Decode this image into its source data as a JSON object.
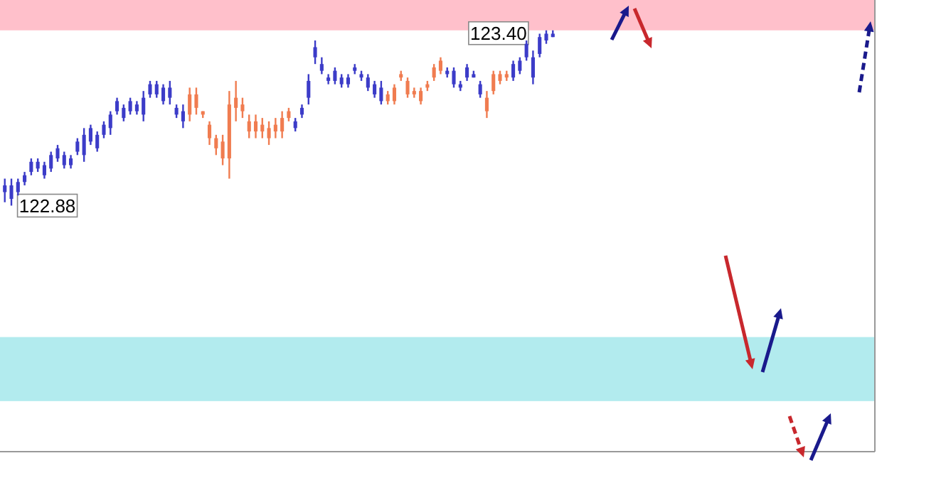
{
  "chart_data": {
    "type": "candlestick",
    "ylim": [
      122.15,
      123.49
    ],
    "categories": [
      null,
      null,
      null,
      null,
      null,
      null,
      null,
      null,
      null,
      null,
      null,
      null,
      null,
      null,
      null,
      null,
      null,
      null,
      null,
      null,
      null,
      null,
      null,
      null,
      null,
      null,
      null,
      null,
      null,
      null,
      null,
      null,
      null,
      null,
      null,
      null,
      null,
      null,
      null,
      null,
      null,
      null,
      null,
      null,
      null,
      null,
      null,
      null,
      null,
      null,
      null,
      null,
      null,
      null,
      null,
      null,
      null,
      null,
      null,
      null,
      null,
      null,
      null,
      null,
      null,
      null,
      null,
      null,
      null,
      null,
      null,
      null,
      null,
      null,
      null,
      null,
      null,
      null,
      null,
      null,
      null,
      null,
      null,
      null
    ],
    "ohlc": [
      [
        122.92,
        122.96,
        122.89,
        122.94
      ],
      [
        122.9,
        122.96,
        122.88,
        122.94
      ],
      [
        122.92,
        122.96,
        122.91,
        122.95
      ],
      [
        122.95,
        122.98,
        122.94,
        122.97
      ],
      [
        122.98,
        123.02,
        122.97,
        123.01
      ],
      [
        122.99,
        123.02,
        122.98,
        123.01
      ],
      [
        122.97,
        123.01,
        122.96,
        123.0
      ],
      [
        122.99,
        123.04,
        122.98,
        123.03
      ],
      [
        123.02,
        123.06,
        123.01,
        123.05
      ],
      [
        123.0,
        123.04,
        122.99,
        123.03
      ],
      [
        123.0,
        123.03,
        122.99,
        123.02
      ],
      [
        123.04,
        123.08,
        123.03,
        123.07
      ],
      [
        123.03,
        123.11,
        123.01,
        123.09
      ],
      [
        123.07,
        123.12,
        123.06,
        123.11
      ],
      [
        123.05,
        123.1,
        123.04,
        123.09
      ],
      [
        123.09,
        123.13,
        123.08,
        123.12
      ],
      [
        123.11,
        123.16,
        123.09,
        123.15
      ],
      [
        123.16,
        123.2,
        123.15,
        123.19
      ],
      [
        123.14,
        123.18,
        123.13,
        123.17
      ],
      [
        123.16,
        123.2,
        123.15,
        123.19
      ],
      [
        123.16,
        123.19,
        123.15,
        123.18
      ],
      [
        123.15,
        123.22,
        123.13,
        123.2
      ],
      [
        123.21,
        123.25,
        123.2,
        123.24
      ],
      [
        123.21,
        123.25,
        123.2,
        123.24
      ],
      [
        123.19,
        123.24,
        123.18,
        123.23
      ],
      [
        123.2,
        123.25,
        123.18,
        123.23
      ],
      [
        123.15,
        123.18,
        123.14,
        123.17
      ],
      [
        123.13,
        123.18,
        123.11,
        123.16
      ],
      [
        123.21,
        123.23,
        123.13,
        123.15
      ],
      [
        123.21,
        123.23,
        123.15,
        123.17
      ],
      [
        123.16,
        123.16,
        123.14,
        123.15
      ],
      [
        123.12,
        123.13,
        123.06,
        123.08
      ],
      [
        123.08,
        123.09,
        123.03,
        123.05
      ],
      [
        123.07,
        123.09,
        123.0,
        123.02
      ],
      [
        123.18,
        123.22,
        122.96,
        123.02
      ],
      [
        123.2,
        123.25,
        123.13,
        123.17
      ],
      [
        123.18,
        123.2,
        123.14,
        123.16
      ],
      [
        123.13,
        123.15,
        123.08,
        123.1
      ],
      [
        123.13,
        123.15,
        123.08,
        123.1
      ],
      [
        123.12,
        123.14,
        123.08,
        123.1
      ],
      [
        123.11,
        123.13,
        123.06,
        123.08
      ],
      [
        123.12,
        123.14,
        123.08,
        123.1
      ],
      [
        123.14,
        123.16,
        123.08,
        123.1
      ],
      [
        123.16,
        123.17,
        123.13,
        123.14
      ],
      [
        123.11,
        123.14,
        123.1,
        123.13
      ],
      [
        123.15,
        123.18,
        123.14,
        123.17
      ],
      [
        123.2,
        123.27,
        123.18,
        123.25
      ],
      [
        123.32,
        123.37,
        123.3,
        123.35
      ],
      [
        123.28,
        123.32,
        123.27,
        123.3
      ],
      [
        123.25,
        123.27,
        123.24,
        123.26
      ],
      [
        123.25,
        123.29,
        123.24,
        123.28
      ],
      [
        123.24,
        123.27,
        123.23,
        123.26
      ],
      [
        123.24,
        123.27,
        123.23,
        123.26
      ],
      [
        123.28,
        123.3,
        123.27,
        123.29
      ],
      [
        123.26,
        123.28,
        123.25,
        123.27
      ],
      [
        123.23,
        123.27,
        123.22,
        123.26
      ],
      [
        123.21,
        123.25,
        123.2,
        123.24
      ],
      [
        123.19,
        123.25,
        123.18,
        123.23
      ],
      [
        123.21,
        123.22,
        123.18,
        123.19
      ],
      [
        123.23,
        123.24,
        123.18,
        123.19
      ],
      [
        123.27,
        123.28,
        123.25,
        123.26
      ],
      [
        123.25,
        123.26,
        123.2,
        123.21
      ],
      [
        123.22,
        123.23,
        123.2,
        123.21
      ],
      [
        123.22,
        123.23,
        123.18,
        123.19
      ],
      [
        123.24,
        123.25,
        123.22,
        123.23
      ],
      [
        123.29,
        123.3,
        123.25,
        123.26
      ],
      [
        123.31,
        123.32,
        123.27,
        123.28
      ],
      [
        123.27,
        123.29,
        123.26,
        123.28
      ],
      [
        123.24,
        123.29,
        123.23,
        123.28
      ],
      [
        123.23,
        123.25,
        123.22,
        123.24
      ],
      [
        123.26,
        123.3,
        123.25,
        123.29
      ],
      [
        123.26,
        123.28,
        123.26,
        123.27
      ],
      [
        123.21,
        123.25,
        123.2,
        123.24
      ],
      [
        123.2,
        123.22,
        123.14,
        123.16
      ],
      [
        123.27,
        123.28,
        123.21,
        123.22
      ],
      [
        123.27,
        123.28,
        123.24,
        123.25
      ],
      [
        123.27,
        123.28,
        123.25,
        123.26
      ],
      [
        123.26,
        123.31,
        123.25,
        123.3
      ],
      [
        123.28,
        123.32,
        123.27,
        123.31
      ],
      [
        123.32,
        123.37,
        123.31,
        123.36
      ],
      [
        123.26,
        123.34,
        123.24,
        123.32
      ],
      [
        123.33,
        123.39,
        123.32,
        123.38
      ],
      [
        123.37,
        123.4,
        123.36,
        123.39
      ],
      [
        123.38,
        123.4,
        123.38,
        123.39
      ]
    ],
    "colors": [
      "#3c3cc8",
      "#3c3cc8",
      "#3c3cc8",
      "#3c3cc8",
      "#3c3cc8",
      "#3c3cc8",
      "#3c3cc8",
      "#3c3cc8",
      "#3c3cc8",
      "#3c3cc8",
      "#3c3cc8",
      "#3c3cc8",
      "#3c3cc8",
      "#3c3cc8",
      "#3c3cc8",
      "#3c3cc8",
      "#3c3cc8",
      "#3c3cc8",
      "#3c3cc8",
      "#3c3cc8",
      "#3c3cc8",
      "#3c3cc8",
      "#3c3cc8",
      "#3c3cc8",
      "#3c3cc8",
      "#3c3cc8",
      "#3c3cc8",
      "#3c3cc8",
      "#f07c50",
      "#f07c50",
      "#f07c50",
      "#f07c50",
      "#f07c50",
      "#f07c50",
      "#f07c50",
      "#f07c50",
      "#f07c50",
      "#f07c50",
      "#f07c50",
      "#f07c50",
      "#f07c50",
      "#f07c50",
      "#f07c50",
      "#f07c50",
      "#3c3cc8",
      "#3c3cc8",
      "#3c3cc8",
      "#3c3cc8",
      "#3c3cc8",
      "#3c3cc8",
      "#3c3cc8",
      "#3c3cc8",
      "#3c3cc8",
      "#3c3cc8",
      "#3c3cc8",
      "#3c3cc8",
      "#3c3cc8",
      "#3c3cc8",
      "#f07c50",
      "#f07c50",
      "#f07c50",
      "#f07c50",
      "#f07c50",
      "#f07c50",
      "#f07c50",
      "#f07c50",
      "#f07c50",
      "#3c3cc8",
      "#3c3cc8",
      "#3c3cc8",
      "#3c3cc8",
      "#3c3cc8",
      "#3c3cc8",
      "#f07c50",
      "#f07c50",
      "#f07c50",
      "#f07c50",
      "#3c3cc8",
      "#3c3cc8",
      "#3c3cc8",
      "#3c3cc8",
      "#3c3cc8",
      "#3c3cc8",
      "#3c3cc8"
    ],
    "bands": [
      {
        "axis": "y",
        "from": 123.4,
        "to": 123.49,
        "color": "#ffc0cb"
      },
      {
        "axis": "y",
        "from": 122.3,
        "to": 122.49,
        "color": "#b2ebee"
      }
    ],
    "annotations": [
      "122.88",
      "123.40"
    ]
  }
}
